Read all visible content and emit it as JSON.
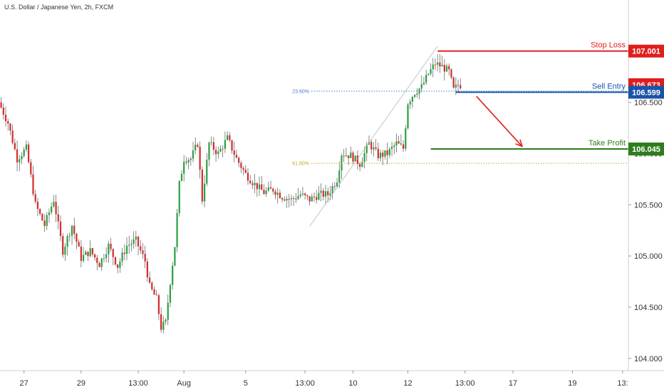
{
  "header": {
    "symbol_label": "U.S. Dollar / Japanese Yen, 2h, FXCM"
  },
  "chart_data": {
    "type": "candlestick",
    "title": "U.S. Dollar / Japanese Yen, 2h, FXCM",
    "y_ticks": [
      "107.000",
      "106.500",
      "106.000",
      "105.500",
      "105.000",
      "104.500",
      "104.000"
    ],
    "y_tick_values": [
      107.0,
      106.5,
      106.0,
      105.5,
      105.0,
      104.5,
      104.0
    ],
    "ylim": [
      103.88,
      107.5
    ],
    "x_ticks": [
      "27",
      "29",
      "13:00",
      "Aug",
      "5",
      "13:00",
      "10",
      "12",
      "13:00",
      "17",
      "19",
      "13:"
    ],
    "x_tick_bars": [
      10,
      35,
      60,
      80,
      107,
      133,
      154,
      178,
      203,
      224,
      250,
      272
    ],
    "total_bars": 275,
    "grid": false,
    "price_tags": [
      {
        "text": "107.001",
        "value": 107.001,
        "color": "#e01e1e"
      },
      {
        "text": "106.673",
        "value": 106.673,
        "color": "#e01e1e"
      },
      {
        "text": "106.599",
        "value": 106.599,
        "color": "#1a54a8"
      },
      {
        "text": "106.045",
        "value": 106.045,
        "color": "#2e7d1c"
      }
    ],
    "levels": [
      {
        "label": "Stop Loss",
        "value": 107.001,
        "color": "#e01e1e",
        "from_bar": 191
      },
      {
        "label": "Sell Entry",
        "value": 106.599,
        "color": "#1a54a8",
        "from_bar": 199
      },
      {
        "label": "Take Profit",
        "value": 106.045,
        "color": "#2e7d1c",
        "from_bar": 188
      }
    ],
    "fib_levels": [
      {
        "label": "23.60%",
        "value": 106.61,
        "color": "#3f7fd0"
      },
      {
        "label": "61.80%",
        "value": 105.905,
        "color": "#c9a227"
      }
    ],
    "arrow": {
      "from_bar": 208,
      "from_value": 106.56,
      "to_bar": 228,
      "to_value": 106.07,
      "color": "#e01e1e"
    },
    "trend_line": {
      "from_bar": 135,
      "from_value": 105.29,
      "to_bar": 191,
      "to_value": 107.05
    },
    "colors": {
      "up": "#2ea043",
      "down": "#d32f2f"
    },
    "path": [
      [
        0,
        106.5
      ],
      [
        4,
        106.3
      ],
      [
        8,
        105.95
      ],
      [
        12,
        106.05
      ],
      [
        16,
        105.5
      ],
      [
        20,
        105.3
      ],
      [
        24,
        105.55
      ],
      [
        28,
        105.05
      ],
      [
        32,
        105.3
      ],
      [
        36,
        104.98
      ],
      [
        40,
        105.05
      ],
      [
        44,
        104.92
      ],
      [
        48,
        105.1
      ],
      [
        52,
        104.9
      ],
      [
        56,
        105.1
      ],
      [
        60,
        105.15
      ],
      [
        64,
        104.95
      ],
      [
        66,
        104.7
      ],
      [
        69,
        104.58
      ],
      [
        71,
        104.3
      ],
      [
        73,
        104.35
      ],
      [
        75,
        104.75
      ],
      [
        77,
        105.1
      ],
      [
        79,
        105.7
      ],
      [
        81,
        105.95
      ],
      [
        84,
        105.95
      ],
      [
        87,
        106.1
      ],
      [
        89,
        105.55
      ],
      [
        92,
        106.1
      ],
      [
        94,
        106.05
      ],
      [
        96,
        106.0
      ],
      [
        100,
        106.15
      ],
      [
        104,
        105.95
      ],
      [
        108,
        105.8
      ],
      [
        112,
        105.7
      ],
      [
        116,
        105.62
      ],
      [
        120,
        105.65
      ],
      [
        124,
        105.58
      ],
      [
        128,
        105.55
      ],
      [
        132,
        105.6
      ],
      [
        136,
        105.55
      ],
      [
        140,
        105.6
      ],
      [
        144,
        105.6
      ],
      [
        148,
        105.75
      ],
      [
        150,
        106.0
      ],
      [
        154,
        105.98
      ],
      [
        158,
        105.9
      ],
      [
        162,
        106.1
      ],
      [
        166,
        105.98
      ],
      [
        170,
        106.0
      ],
      [
        174,
        106.1
      ],
      [
        177,
        106.05
      ],
      [
        179,
        106.5
      ],
      [
        182,
        106.6
      ],
      [
        185,
        106.65
      ],
      [
        188,
        106.78
      ],
      [
        191,
        106.88
      ],
      [
        194,
        106.85
      ],
      [
        197,
        106.8
      ],
      [
        199,
        106.62
      ],
      [
        201,
        106.67
      ]
    ]
  }
}
